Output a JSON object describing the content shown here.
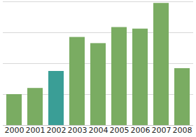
{
  "chart_data": {
    "type": "bar",
    "categories": [
      "2000",
      "2001",
      "2002",
      "2003",
      "2004",
      "2005",
      "2006",
      "2007",
      "2008"
    ],
    "values": [
      1.0,
      1.2,
      1.75,
      2.85,
      2.65,
      3.17,
      3.12,
      3.95,
      1.84
    ],
    "colors": [
      "#7aac62",
      "#7aac62",
      "#3a9e96",
      "#7aac62",
      "#7aac62",
      "#7aac62",
      "#7aac62",
      "#7aac62",
      "#7aac62"
    ],
    "ylim": [
      0,
      4
    ],
    "yticks": [
      0,
      1,
      2,
      3,
      4
    ],
    "grid": true,
    "tick_labels": "x"
  }
}
